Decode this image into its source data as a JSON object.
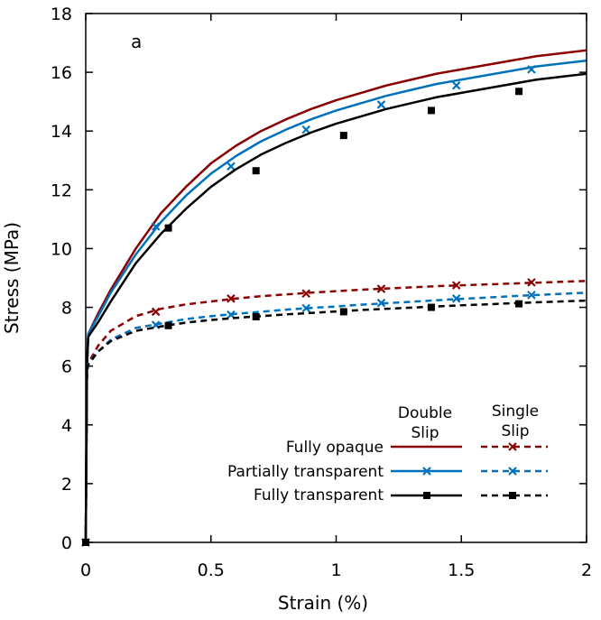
{
  "chart_data": {
    "type": "line",
    "panel_label": "a",
    "xlabel": "Strain (%)",
    "ylabel": "Stress (MPa)",
    "xlim": [
      0,
      2
    ],
    "ylim": [
      0,
      18
    ],
    "xticks": [
      0,
      0.5,
      1,
      1.5,
      2
    ],
    "xtick_labels": [
      "0",
      "0.5",
      "1",
      "1.5",
      "2"
    ],
    "yticks": [
      0,
      2,
      4,
      6,
      8,
      10,
      12,
      14,
      16,
      18
    ],
    "ytick_labels": [
      "0",
      "2",
      "4",
      "6",
      "8",
      "10",
      "12",
      "14",
      "16",
      "18"
    ],
    "grid": false,
    "legend": {
      "placement": "bottom-right",
      "column_headers": [
        {
          "line1": "Double",
          "line2": "Slip"
        },
        {
          "line1": "Single",
          "line2": "Slip"
        }
      ],
      "row_labels": [
        "Fully opaque",
        "Partially transparent",
        "Fully transparent"
      ]
    },
    "series": [
      {
        "name": "Fully opaque - Double Slip",
        "color": "#8b0000",
        "dash": "solid",
        "marker": "none",
        "x": [
          0,
          0.005,
          0.01,
          0.05,
          0.1,
          0.2,
          0.3,
          0.4,
          0.5,
          0.6,
          0.7,
          0.8,
          0.9,
          1.0,
          1.1,
          1.2,
          1.3,
          1.4,
          1.5,
          1.6,
          1.7,
          1.8,
          1.9,
          2.0
        ],
        "y": [
          0,
          6.0,
          7.1,
          7.8,
          8.6,
          10.0,
          11.2,
          12.1,
          12.9,
          13.5,
          14.0,
          14.4,
          14.75,
          15.05,
          15.3,
          15.55,
          15.75,
          15.95,
          16.1,
          16.25,
          16.4,
          16.55,
          16.65,
          16.75
        ],
        "marker_x": [],
        "marker_y": []
      },
      {
        "name": "Partially transparent - Double Slip",
        "color": "#0072bd",
        "dash": "solid",
        "marker": "x",
        "x": [
          0,
          0.005,
          0.01,
          0.05,
          0.1,
          0.2,
          0.3,
          0.4,
          0.5,
          0.6,
          0.7,
          0.8,
          0.9,
          1.0,
          1.1,
          1.2,
          1.3,
          1.4,
          1.5,
          1.6,
          1.7,
          1.8,
          1.9,
          2.0
        ],
        "y": [
          0,
          6.0,
          7.1,
          7.7,
          8.5,
          9.8,
          10.9,
          11.8,
          12.55,
          13.15,
          13.65,
          14.05,
          14.4,
          14.7,
          14.95,
          15.2,
          15.4,
          15.6,
          15.75,
          15.9,
          16.05,
          16.2,
          16.3,
          16.4
        ],
        "marker_x": [
          0,
          0.28,
          0.58,
          0.88,
          1.18,
          1.48,
          1.78
        ],
        "marker_y": [
          0,
          10.75,
          12.8,
          14.05,
          14.9,
          15.55,
          16.1
        ]
      },
      {
        "name": "Fully transparent - Double Slip",
        "color": "#000000",
        "dash": "solid",
        "marker": "square",
        "x": [
          0,
          0.005,
          0.01,
          0.05,
          0.1,
          0.2,
          0.3,
          0.4,
          0.5,
          0.6,
          0.7,
          0.8,
          0.9,
          1.0,
          1.1,
          1.2,
          1.3,
          1.4,
          1.5,
          1.6,
          1.7,
          1.8,
          1.9,
          2.0
        ],
        "y": [
          0,
          6.0,
          7.0,
          7.5,
          8.2,
          9.5,
          10.5,
          11.35,
          12.1,
          12.7,
          13.2,
          13.6,
          13.95,
          14.25,
          14.5,
          14.75,
          14.95,
          15.15,
          15.3,
          15.45,
          15.6,
          15.75,
          15.85,
          15.95
        ],
        "marker_x": [
          0,
          0.33,
          0.68,
          1.03,
          1.38,
          1.73
        ],
        "marker_y": [
          0,
          10.7,
          12.65,
          13.85,
          14.7,
          15.35
        ]
      },
      {
        "name": "Fully opaque - Single Slip",
        "color": "#8b0000",
        "dash": "dashed",
        "marker": "x",
        "x": [
          0,
          0.005,
          0.01,
          0.05,
          0.1,
          0.2,
          0.3,
          0.4,
          0.5,
          0.6,
          0.7,
          0.8,
          0.9,
          1.0,
          1.1,
          1.2,
          1.3,
          1.4,
          1.5,
          1.6,
          1.7,
          1.8,
          1.9,
          2.0
        ],
        "y": [
          0,
          5.8,
          6.1,
          6.7,
          7.2,
          7.7,
          7.95,
          8.1,
          8.2,
          8.3,
          8.38,
          8.44,
          8.5,
          8.55,
          8.6,
          8.64,
          8.68,
          8.72,
          8.75,
          8.78,
          8.81,
          8.84,
          8.87,
          8.9
        ],
        "marker_x": [
          0,
          0.28,
          0.58,
          0.88,
          1.18,
          1.48,
          1.78
        ],
        "marker_y": [
          0,
          7.85,
          8.3,
          8.47,
          8.63,
          8.75,
          8.85
        ]
      },
      {
        "name": "Partially transparent - Single Slip",
        "color": "#0072bd",
        "dash": "dashed",
        "marker": "x",
        "x": [
          0,
          0.005,
          0.01,
          0.05,
          0.1,
          0.2,
          0.3,
          0.4,
          0.5,
          0.6,
          0.7,
          0.8,
          0.9,
          1.0,
          1.1,
          1.2,
          1.3,
          1.4,
          1.5,
          1.6,
          1.7,
          1.8,
          1.9,
          2.0
        ],
        "y": [
          0,
          5.8,
          6.1,
          6.5,
          6.9,
          7.3,
          7.45,
          7.6,
          7.7,
          7.78,
          7.85,
          7.92,
          7.98,
          8.03,
          8.09,
          8.14,
          8.19,
          8.24,
          8.29,
          8.33,
          8.38,
          8.42,
          8.46,
          8.5
        ],
        "marker_x": [
          0,
          0.28,
          0.58,
          0.88,
          1.18,
          1.48,
          1.78
        ],
        "marker_y": [
          0,
          7.4,
          7.75,
          7.97,
          8.15,
          8.3,
          8.42
        ]
      },
      {
        "name": "Fully transparent - Single Slip",
        "color": "#000000",
        "dash": "dashed",
        "marker": "square",
        "x": [
          0,
          0.005,
          0.01,
          0.05,
          0.1,
          0.2,
          0.3,
          0.4,
          0.5,
          0.6,
          0.7,
          0.8,
          0.9,
          1.0,
          1.1,
          1.2,
          1.3,
          1.4,
          1.5,
          1.6,
          1.7,
          1.8,
          1.9,
          2.0
        ],
        "y": [
          0,
          5.8,
          6.05,
          6.5,
          6.85,
          7.2,
          7.35,
          7.48,
          7.57,
          7.64,
          7.7,
          7.76,
          7.81,
          7.86,
          7.91,
          7.95,
          7.99,
          8.03,
          8.07,
          8.1,
          8.14,
          8.17,
          8.2,
          8.23
        ],
        "marker_x": [
          0,
          0.33,
          0.68,
          1.03,
          1.38,
          1.73
        ],
        "marker_y": [
          0,
          7.38,
          7.68,
          7.85,
          8.0,
          8.12
        ]
      }
    ]
  }
}
